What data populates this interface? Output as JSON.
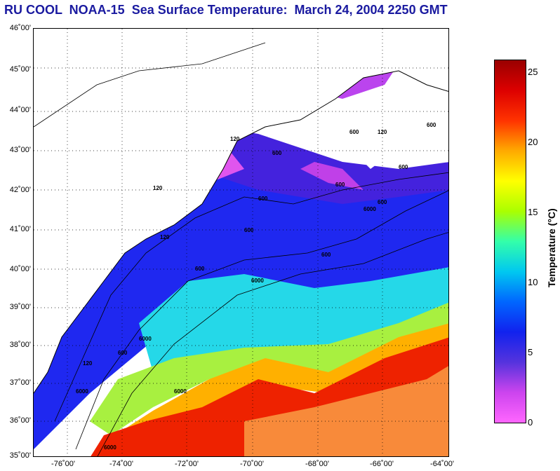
{
  "title": "RU COOL  NOAA-15  Sea Surface Temperature:  March 24, 2004 2250 GMT",
  "colors": {
    "title": "#1a1aa0",
    "land": "#ffffff",
    "contour": "#000000",
    "grid": "#000000"
  },
  "lat_labels": [
    "46˚00'",
    "45˚00'",
    "44˚00'",
    "43˚00'",
    "42˚00'",
    "41˚00'",
    "40˚00'",
    "39˚00'",
    "38˚00'",
    "37˚00'",
    "36˚00'",
    "35˚00'"
  ],
  "lon_labels": [
    "-76˚00'",
    "-74˚00'",
    "-72˚00'",
    "-70˚00'",
    "-68˚00'",
    "-66˚00'",
    "-64˚00'"
  ],
  "bathymetry_labels": [
    "120",
    "600",
    "600",
    "120",
    "600",
    "600",
    "600",
    "120",
    "600",
    "6000",
    "600",
    "6000",
    "600",
    "600",
    "6000",
    "120",
    "600",
    "6000",
    "120",
    "600",
    "6000",
    "6000"
  ],
  "colorbar": {
    "label": "Temperature (°C)",
    "ticks": [
      "25",
      "20",
      "15",
      "10",
      "5",
      "0"
    ],
    "range": [
      0,
      26
    ],
    "gradient_stops": [
      "#ff66ff",
      "#cc44ee",
      "#5533dd",
      "#1122ee",
      "#0066ff",
      "#00c8f0",
      "#33ffaa",
      "#aaff00",
      "#ffff00",
      "#ffaa00",
      "#ff3300",
      "#dd0000",
      "#990000"
    ]
  }
}
